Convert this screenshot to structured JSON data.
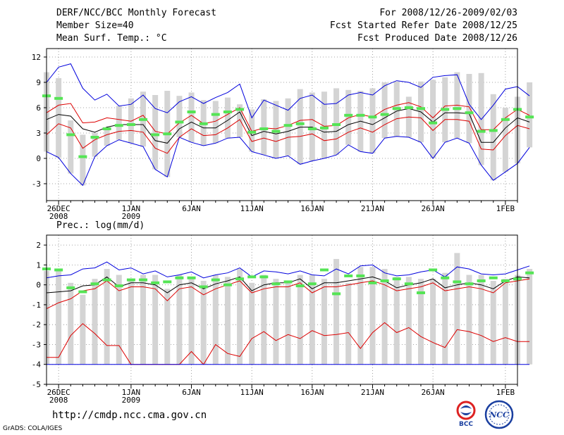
{
  "header": {
    "title": "DERF/NCC/BCC Monthly Forecast",
    "member_size": "Member Size=40",
    "variable_top": "Mean Surf. Temp.: °C",
    "period": "For 2008/12/26-2009/02/03",
    "started": "Fcst Started Refer Date 2008/12/25",
    "produced": "Fcst Produced Date 2008/12/26"
  },
  "footer": {
    "url": "http://cmdp.ncc.cma.gov.cn",
    "credit": "GrADS: COLA/IGES",
    "logo_bcc": "BCC",
    "logo_ncc": "NCC"
  },
  "colors": {
    "max_min": "#0000dd",
    "spread": "#dd0000",
    "mean": "#000000",
    "box": "#d4d4d4",
    "obs": "#55e455",
    "grid": "#888888"
  },
  "chart_data": [
    {
      "type": "line",
      "title": "Mean Surf. Temp.: °C",
      "ylim": [
        -5,
        13
      ],
      "yticks": [
        -3,
        0,
        3,
        6,
        9,
        12
      ],
      "xlim": [
        0,
        39
      ],
      "xtick_day_index": [
        1,
        7,
        12,
        17,
        22,
        27,
        32,
        38
      ],
      "xtick_labels": [
        "26DEC",
        "1JAN",
        "6JAN",
        "11JAN",
        "16JAN",
        "21JAN",
        "26JAN",
        "1FEB"
      ],
      "xtick_sublabels": [
        "2008",
        "2009",
        "",
        "",
        "",
        "",
        "",
        ""
      ],
      "series": [
        {
          "name": "max",
          "values": [
            9,
            10.8,
            11.2,
            8.3,
            6.9,
            7.6,
            6.2,
            6.4,
            7.5,
            5.9,
            5.4,
            6.7,
            7.3,
            6.5,
            7.2,
            7.8,
            8.8,
            4.8,
            6.9,
            6.3,
            5.7,
            7.1,
            7.5,
            6.4,
            6.5,
            7.5,
            7.8,
            7.5,
            8.6,
            9.2,
            9,
            8.4,
            9.6,
            9.8,
            9.9,
            6.4,
            4.6,
            6.3,
            8.2,
            8.5,
            7.4
          ]
        },
        {
          "name": "upper",
          "values": [
            5.4,
            6.3,
            6.5,
            4.2,
            4.3,
            4.8,
            4.6,
            4.4,
            5.1,
            3.2,
            2.9,
            4.2,
            5.1,
            4.1,
            4.4,
            5.2,
            6,
            3.2,
            3.6,
            3.5,
            3.9,
            4.5,
            4.6,
            3.8,
            3.9,
            4.8,
            5.2,
            4.9,
            5.8,
            6.3,
            6.6,
            6.1,
            4.8,
            6.2,
            6.3,
            6.1,
            3.4,
            3.4,
            4.8,
            5.8,
            5.1
          ]
        },
        {
          "name": "mean",
          "values": [
            4.6,
            5.2,
            5,
            3.5,
            3.1,
            3.7,
            4,
            4,
            4,
            2.1,
            1.8,
            3.5,
            4.3,
            3.6,
            3.6,
            4.5,
            5.5,
            2.7,
            3.2,
            2.9,
            3.2,
            3.7,
            3.7,
            3.1,
            3.2,
            4,
            4.4,
            4,
            4.8,
            5.6,
            5.9,
            5.5,
            4.3,
            5.4,
            5.4,
            5.3,
            1.9,
            1.9,
            3.6,
            4.8,
            4.3
          ]
        },
        {
          "name": "lower",
          "values": [
            2.8,
            4.1,
            3.6,
            1.2,
            2.2,
            2.8,
            3.2,
            3.3,
            3.1,
            1.2,
            0.6,
            2.5,
            3.5,
            2.7,
            2.8,
            3.6,
            4.6,
            2,
            2.4,
            2,
            2.5,
            2.6,
            2.9,
            2.1,
            2.3,
            3.1,
            3.6,
            3.1,
            4,
            4.7,
            4.9,
            4.8,
            3.3,
            4.6,
            4.6,
            4.4,
            1.1,
            1,
            2.7,
            3.9,
            3.5
          ]
        },
        {
          "name": "min",
          "values": [
            0.8,
            0.1,
            -1.8,
            -3.2,
            0.2,
            1.5,
            2.2,
            1.8,
            1.4,
            -1.3,
            -2.2,
            2.5,
            1.9,
            1.5,
            1.8,
            2.4,
            2.5,
            0.8,
            0.4,
            0,
            0.3,
            -0.7,
            -0.3,
            0,
            0.4,
            1.6,
            0.8,
            0.6,
            2.4,
            2.6,
            2.5,
            1.9,
            0,
            1.9,
            2.4,
            1.8,
            -0.8,
            -2.6,
            -1.6,
            -0.6,
            1.3
          ]
        },
        {
          "name": "observed",
          "values": [
            7.4,
            7.1,
            2.8,
            0.2,
            2.5,
            3.5,
            3.9,
            4,
            4.6,
            2.8,
            2.9,
            4.3,
            5.5,
            4.1,
            5.2,
            5.5,
            5.8,
            3.1,
            3.5,
            3.2,
            3.9,
            4.1,
            3.5,
            3.6,
            4,
            5.1,
            5.1,
            4.9,
            5.2,
            5.9,
            6,
            5.9,
            4.2,
            5.8,
            5.9,
            5.4,
            3.2,
            3.3,
            4.6,
            5.8,
            4.9
          ]
        }
      ],
      "boxes_upper": [
        10.2,
        9.5,
        4.5,
        2.8,
        3,
        3.6,
        6.2,
        7.1,
        7.9,
        7.5,
        8,
        7.4,
        7.8,
        6.9,
        6.8,
        7.2,
        6.4,
        5.8,
        7,
        6.8,
        7.1,
        8.2,
        7.8,
        7.9,
        8.3,
        8.1,
        8,
        8.3,
        9,
        9.1,
        7.3,
        9.1,
        9.3,
        9.6,
        10.2,
        10,
        10.1,
        7.6,
        6,
        7.3,
        9
      ]
    },
    {
      "type": "line",
      "title": "Prec.: log(mm/d)",
      "ylim": [
        -5,
        2.5
      ],
      "yticks": [
        -5,
        -4,
        -3,
        -2,
        -1,
        0,
        1,
        2
      ],
      "xlim": [
        0,
        39
      ],
      "xtick_day_index": [
        1,
        7,
        12,
        17,
        22,
        27,
        32,
        38
      ],
      "xtick_labels": [
        "26DEC",
        "1JAN",
        "6JAN",
        "11JAN",
        "16JAN",
        "21JAN",
        "26JAN",
        "1FEB"
      ],
      "xtick_sublabels": [
        "2008",
        "2009",
        "",
        "",
        "",
        "",
        "",
        ""
      ],
      "series": [
        {
          "name": "max",
          "values": [
            0.35,
            0.45,
            0.5,
            0.8,
            0.85,
            1.15,
            0.75,
            0.85,
            0.55,
            0.7,
            0.4,
            0.5,
            0.65,
            0.35,
            0.5,
            0.6,
            0.85,
            0.4,
            0.7,
            0.65,
            0.55,
            0.7,
            0.5,
            0.45,
            0.8,
            0.55,
            0.95,
            1,
            0.6,
            0.45,
            0.5,
            0.65,
            0.75,
            0.4,
            0.9,
            0.8,
            0.55,
            0.5,
            0.55,
            0.75,
            0.95
          ]
        },
        {
          "name": "upper",
          "values": [
            -1.2,
            -0.9,
            -0.7,
            -0.3,
            -0.2,
            0.2,
            -0.3,
            -0.1,
            -0.1,
            -0.2,
            -0.8,
            -0.2,
            -0.1,
            -0.5,
            -0.2,
            0,
            0.2,
            -0.4,
            -0.2,
            -0.1,
            -0.1,
            0.1,
            -0.4,
            -0.1,
            -0.1,
            0,
            0.1,
            0.2,
            0,
            -0.3,
            -0.2,
            -0.1,
            0.1,
            -0.3,
            -0.2,
            -0.1,
            -0.2,
            -0.4,
            0.1,
            0.2,
            0.3
          ]
        },
        {
          "name": "mean",
          "values": [
            -0.4,
            -0.35,
            -0.3,
            -0.05,
            0,
            0.4,
            -0.1,
            0.1,
            0.1,
            0,
            -0.4,
            0,
            0.1,
            -0.2,
            0.05,
            0.2,
            0.4,
            -0.3,
            0,
            0.1,
            0.1,
            0.3,
            -0.2,
            0.1,
            0.1,
            0.2,
            0.3,
            0.4,
            0.2,
            -0.15,
            0,
            0.1,
            0.3,
            -0.15,
            0,
            0.1,
            0,
            -0.2,
            0.2,
            0.4,
            0.35
          ]
        },
        {
          "name": "lower",
          "values": [
            -3.65,
            -3.65,
            -2.55,
            -1.95,
            -2.45,
            -3.05,
            -3.05,
            -4,
            -4,
            -4,
            -4,
            -4,
            -3.35,
            -4,
            -3,
            -3.45,
            -3.6,
            -2.7,
            -2.35,
            -2.8,
            -2.5,
            -2.7,
            -2.3,
            -2.55,
            -2.5,
            -2.4,
            -3.2,
            -2.4,
            -1.9,
            -2.4,
            -2.15,
            -2.6,
            -2.9,
            -3.15,
            -2.25,
            -2.35,
            -2.55,
            -2.85,
            -2.65,
            -2.85,
            -2.85
          ]
        },
        {
          "name": "min",
          "values": [
            -4,
            -4,
            -4,
            -4,
            -4,
            -4,
            -4,
            -4,
            -4,
            -4,
            -4,
            -4,
            -4,
            -4,
            -4,
            -4,
            -4,
            -4,
            -4,
            -4,
            -4,
            -4,
            -4,
            -4,
            -4,
            -4,
            -4,
            -4,
            -4,
            -4,
            -4,
            -4,
            -4,
            -4,
            -4,
            -4,
            -4,
            -4,
            -4,
            -4,
            -4
          ]
        },
        {
          "name": "observed",
          "values": [
            0.8,
            0.75,
            -0.15,
            -0.35,
            0.05,
            0.25,
            -0.05,
            0.25,
            0.25,
            0.1,
            0.15,
            0.35,
            0.35,
            -0.1,
            0.25,
            0,
            0.3,
            0.4,
            0.4,
            0.05,
            0.15,
            -0.05,
            0.05,
            0.75,
            -0.45,
            0.45,
            0.45,
            0.1,
            0.2,
            0.3,
            0.05,
            -0.4,
            0.75,
            0.35,
            0.15,
            0.05,
            0.2,
            0.35,
            0.2,
            0.3,
            0.6
          ]
        }
      ],
      "boxes_upper": [
        0.7,
        0.7,
        0.1,
        -0.5,
        0.3,
        0.8,
        0.5,
        0.3,
        0.5,
        0.5,
        -0.2,
        0.5,
        0.4,
        0.2,
        0.5,
        0.4,
        0.8,
        0.1,
        0.5,
        0.3,
        0.2,
        0.5,
        0.5,
        0.3,
        1.3,
        0.1,
        0.9,
        0.9,
        0.8,
        0.4,
        0.4,
        0.3,
        0.3,
        0.6,
        1.6,
        0.5,
        0.5,
        0.2,
        0.3,
        0.5,
        0.8
      ]
    }
  ]
}
